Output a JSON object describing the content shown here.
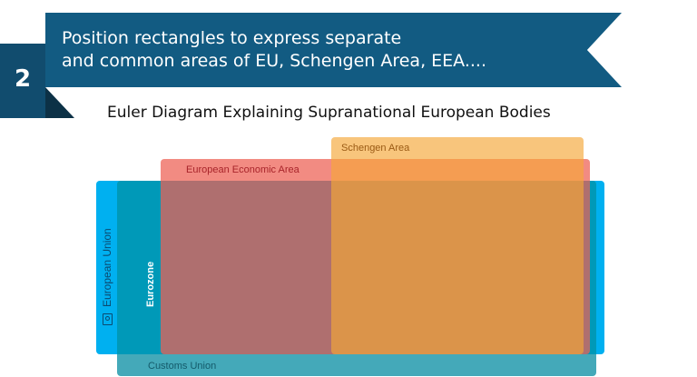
{
  "header": {
    "step_number": "2",
    "line1": "Position rectangles to express separate",
    "line2": "and common areas of EU, Schengen Area, EEA...."
  },
  "diagram": {
    "title": "Euler Diagram Explaining Supranational European Bodies",
    "sets": [
      {
        "label": "European Union",
        "color": "#00b0f0"
      },
      {
        "label": "Customs Union",
        "color": "#44a9b9"
      },
      {
        "label": "Eurozone",
        "color": "#0099b8"
      },
      {
        "label": "European Economic Area",
        "color": "#f28b82"
      },
      {
        "label": "Schengen Area",
        "color": "#f8c57c"
      }
    ],
    "icon": "camera-icon"
  }
}
